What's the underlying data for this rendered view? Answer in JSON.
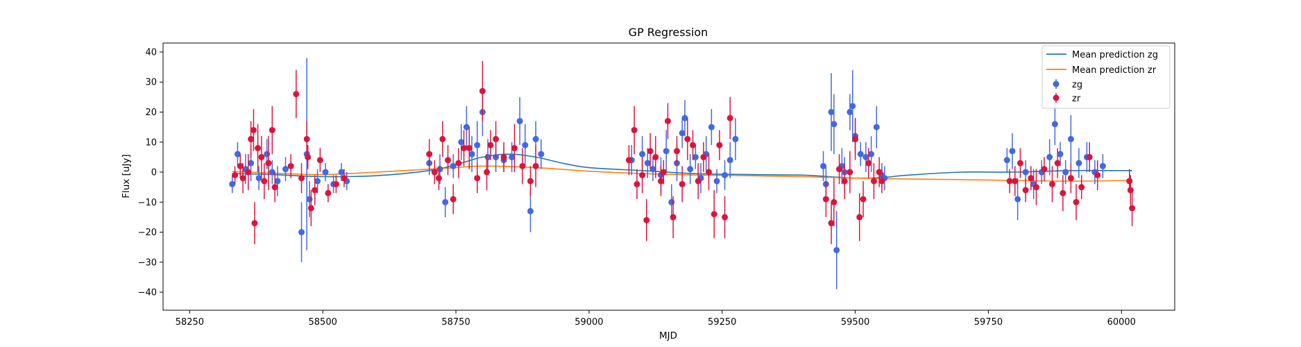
{
  "chart_data": {
    "type": "scatter",
    "title": "GP Regression",
    "xlabel": "MJD",
    "ylabel": "Flux [uJy]",
    "xlim": [
      58200,
      60100
    ],
    "ylim": [
      -46,
      43
    ],
    "xticks": [
      58250,
      58500,
      58750,
      59000,
      59250,
      59500,
      59750,
      60000
    ],
    "yticks": [
      -40,
      -30,
      -20,
      -10,
      0,
      10,
      20,
      30,
      40
    ],
    "grid": false,
    "legend_position": "top-right",
    "legend": [
      "Mean prediction zg",
      "Mean prediction zr",
      "zg",
      "zr"
    ],
    "colors": {
      "zg_line": "#1f77b4",
      "zr_line": "#ff7f0e",
      "zg_points": "#4169e1",
      "zr_points": "#dc143c"
    },
    "lines": [
      {
        "name": "Mean prediction zg",
        "x": [
          58330,
          58400,
          58500,
          58600,
          58700,
          58750,
          58800,
          58850,
          58900,
          58950,
          59000,
          59100,
          59200,
          59300,
          59400,
          59450,
          59500,
          59550,
          59600,
          59700,
          59800,
          59900,
          60000,
          60020
        ],
        "y": [
          -0.5,
          -0.8,
          -1.5,
          -1.2,
          0.5,
          2.5,
          5.0,
          6.0,
          5.0,
          3.0,
          1.5,
          0.5,
          -0.5,
          -0.8,
          -1.0,
          -1.5,
          -2.0,
          -1.8,
          -1.0,
          0.0,
          0.0,
          0.5,
          0.5,
          0.5
        ]
      },
      {
        "name": "Mean prediction zr",
        "x": [
          58330,
          58400,
          58500,
          58600,
          58700,
          58750,
          58800,
          58900,
          59000,
          59100,
          59200,
          59300,
          59400,
          59500,
          59600,
          59700,
          59800,
          59900,
          60000,
          60020
        ],
        "y": [
          0.2,
          -0.3,
          -0.8,
          0.0,
          1.0,
          1.5,
          2.0,
          1.5,
          0.3,
          -0.5,
          -1.0,
          -1.2,
          -1.5,
          -2.0,
          -2.3,
          -2.5,
          -2.8,
          -3.0,
          -2.8,
          -2.5
        ]
      }
    ],
    "series": [
      {
        "name": "zg",
        "points": [
          [
            58330,
            -4,
            3
          ],
          [
            58340,
            6,
            4
          ],
          [
            58355,
            1,
            5
          ],
          [
            58365,
            3,
            6
          ],
          [
            58380,
            -2,
            4
          ],
          [
            58395,
            6,
            5
          ],
          [
            58405,
            0,
            4
          ],
          [
            58415,
            -3,
            5
          ],
          [
            58430,
            1,
            4
          ],
          [
            58460,
            -20,
            10
          ],
          [
            58470,
            6,
            32
          ],
          [
            58475,
            -9,
            6
          ],
          [
            58490,
            -3,
            4
          ],
          [
            58505,
            0,
            3
          ],
          [
            58520,
            -4,
            3
          ],
          [
            58535,
            0,
            3
          ],
          [
            58545,
            -3,
            3
          ],
          [
            58700,
            3,
            4
          ],
          [
            58720,
            1,
            5
          ],
          [
            58730,
            -10,
            5
          ],
          [
            58745,
            2,
            4
          ],
          [
            58760,
            10,
            6
          ],
          [
            58770,
            15,
            7
          ],
          [
            58780,
            6,
            6
          ],
          [
            58790,
            9,
            8
          ],
          [
            58800,
            20,
            8
          ],
          [
            58810,
            5,
            6
          ],
          [
            58825,
            5,
            5
          ],
          [
            58840,
            4,
            4
          ],
          [
            58855,
            5,
            5
          ],
          [
            58870,
            17,
            8
          ],
          [
            58880,
            9,
            7
          ],
          [
            58890,
            -13,
            7
          ],
          [
            58900,
            11,
            6
          ],
          [
            58910,
            6,
            5
          ],
          [
            59080,
            4,
            5
          ],
          [
            59100,
            6,
            6
          ],
          [
            59110,
            3,
            5
          ],
          [
            59120,
            1,
            4
          ],
          [
            59135,
            -1,
            6
          ],
          [
            59145,
            7,
            7
          ],
          [
            59155,
            -10,
            6
          ],
          [
            59165,
            3,
            6
          ],
          [
            59175,
            13,
            5
          ],
          [
            59180,
            18,
            6
          ],
          [
            59190,
            1,
            5
          ],
          [
            59200,
            5,
            4
          ],
          [
            59210,
            -2,
            5
          ],
          [
            59220,
            6,
            6
          ],
          [
            59230,
            15,
            6
          ],
          [
            59240,
            -3,
            4
          ],
          [
            59255,
            -1,
            5
          ],
          [
            59265,
            4,
            6
          ],
          [
            59275,
            11,
            7
          ],
          [
            59440,
            2,
            5
          ],
          [
            59445,
            -4,
            6
          ],
          [
            59455,
            20,
            13
          ],
          [
            59460,
            16,
            10
          ],
          [
            59465,
            -26,
            13
          ],
          [
            59475,
            2,
            6
          ],
          [
            59480,
            0,
            5
          ],
          [
            59490,
            20,
            6
          ],
          [
            59495,
            22,
            12
          ],
          [
            59500,
            12,
            6
          ],
          [
            59510,
            6,
            4
          ],
          [
            59520,
            5,
            5
          ],
          [
            59530,
            6,
            6
          ],
          [
            59540,
            15,
            7
          ],
          [
            59550,
            -1,
            4
          ],
          [
            59555,
            -2,
            4
          ],
          [
            59785,
            4,
            4
          ],
          [
            59795,
            7,
            6
          ],
          [
            59805,
            -9,
            7
          ],
          [
            59820,
            0,
            4
          ],
          [
            59835,
            -4,
            5
          ],
          [
            59850,
            0,
            4
          ],
          [
            59865,
            5,
            6
          ],
          [
            59875,
            16,
            7
          ],
          [
            59885,
            6,
            4
          ],
          [
            59895,
            0,
            4
          ],
          [
            59905,
            11,
            8
          ],
          [
            59920,
            3,
            5
          ],
          [
            59935,
            5,
            5
          ],
          [
            59950,
            0,
            4
          ],
          [
            59965,
            2,
            4
          ]
        ]
      },
      {
        "name": "zr",
        "points": [
          [
            58335,
            -1,
            3
          ],
          [
            58345,
            2,
            4
          ],
          [
            58350,
            -2,
            5
          ],
          [
            58360,
            0,
            6
          ],
          [
            58365,
            11,
            6
          ],
          [
            58370,
            14,
            7
          ],
          [
            58372,
            -17,
            7
          ],
          [
            58378,
            8,
            8
          ],
          [
            58385,
            5,
            7
          ],
          [
            58390,
            -3,
            6
          ],
          [
            58398,
            3,
            9
          ],
          [
            58405,
            14,
            8
          ],
          [
            58410,
            -5,
            5
          ],
          [
            58440,
            2,
            4
          ],
          [
            58450,
            26,
            8
          ],
          [
            58460,
            -2,
            5
          ],
          [
            58470,
            11,
            6
          ],
          [
            58472,
            5,
            4
          ],
          [
            58478,
            -12,
            6
          ],
          [
            58485,
            -6,
            5
          ],
          [
            58495,
            4,
            4
          ],
          [
            58510,
            -7,
            3
          ],
          [
            58525,
            -4,
            3
          ],
          [
            58540,
            -2,
            3
          ],
          [
            58700,
            6,
            5
          ],
          [
            58710,
            0,
            4
          ],
          [
            58718,
            -2,
            4
          ],
          [
            58725,
            11,
            6
          ],
          [
            58735,
            4,
            5
          ],
          [
            58745,
            -9,
            5
          ],
          [
            58755,
            3,
            5
          ],
          [
            58765,
            8,
            6
          ],
          [
            58775,
            8,
            7
          ],
          [
            58790,
            -2,
            5
          ],
          [
            58800,
            27,
            10
          ],
          [
            58808,
            0,
            6
          ],
          [
            58815,
            9,
            5
          ],
          [
            58825,
            11,
            6
          ],
          [
            58840,
            5,
            5
          ],
          [
            58860,
            8,
            8
          ],
          [
            58875,
            2,
            6
          ],
          [
            58890,
            -3,
            5
          ],
          [
            58900,
            2,
            7
          ],
          [
            59075,
            4,
            5
          ],
          [
            59085,
            14,
            8
          ],
          [
            59090,
            -4,
            5
          ],
          [
            59100,
            -1,
            6
          ],
          [
            59108,
            -16,
            7
          ],
          [
            59115,
            7,
            6
          ],
          [
            59125,
            5,
            7
          ],
          [
            59135,
            -3,
            5
          ],
          [
            59140,
            0,
            4
          ],
          [
            59148,
            17,
            6
          ],
          [
            59158,
            -15,
            7
          ],
          [
            59165,
            7,
            5
          ],
          [
            59175,
            -4,
            6
          ],
          [
            59185,
            11,
            7
          ],
          [
            59195,
            9,
            5
          ],
          [
            59205,
            -3,
            6
          ],
          [
            59215,
            5,
            5
          ],
          [
            59225,
            0,
            6
          ],
          [
            59235,
            -14,
            8
          ],
          [
            59245,
            9,
            5
          ],
          [
            59255,
            -15,
            7
          ],
          [
            59265,
            18,
            7
          ],
          [
            59445,
            -9,
            6
          ],
          [
            59455,
            -17,
            7
          ],
          [
            59460,
            -10,
            8
          ],
          [
            59470,
            1,
            5
          ],
          [
            59480,
            -3,
            6
          ],
          [
            59490,
            0,
            7
          ],
          [
            59500,
            11,
            7
          ],
          [
            59508,
            -15,
            8
          ],
          [
            59515,
            -9,
            6
          ],
          [
            59525,
            3,
            5
          ],
          [
            59535,
            -3,
            6
          ],
          [
            59545,
            0,
            5
          ],
          [
            59550,
            -3,
            4
          ],
          [
            59790,
            -3,
            4
          ],
          [
            59800,
            -3,
            5
          ],
          [
            59810,
            3,
            5
          ],
          [
            59820,
            -6,
            4
          ],
          [
            59830,
            -2,
            4
          ],
          [
            59840,
            -5,
            6
          ],
          [
            59855,
            1,
            4
          ],
          [
            59870,
            -4,
            6
          ],
          [
            59880,
            3,
            5
          ],
          [
            59890,
            -7,
            6
          ],
          [
            59905,
            -2,
            5
          ],
          [
            59915,
            -10,
            6
          ],
          [
            59925,
            -5,
            4
          ],
          [
            59940,
            5,
            5
          ],
          [
            59955,
            -1,
            5
          ],
          [
            60015,
            -3,
            4
          ],
          [
            60017,
            -6,
            5
          ],
          [
            60020,
            -12,
            6
          ]
        ]
      }
    ]
  }
}
